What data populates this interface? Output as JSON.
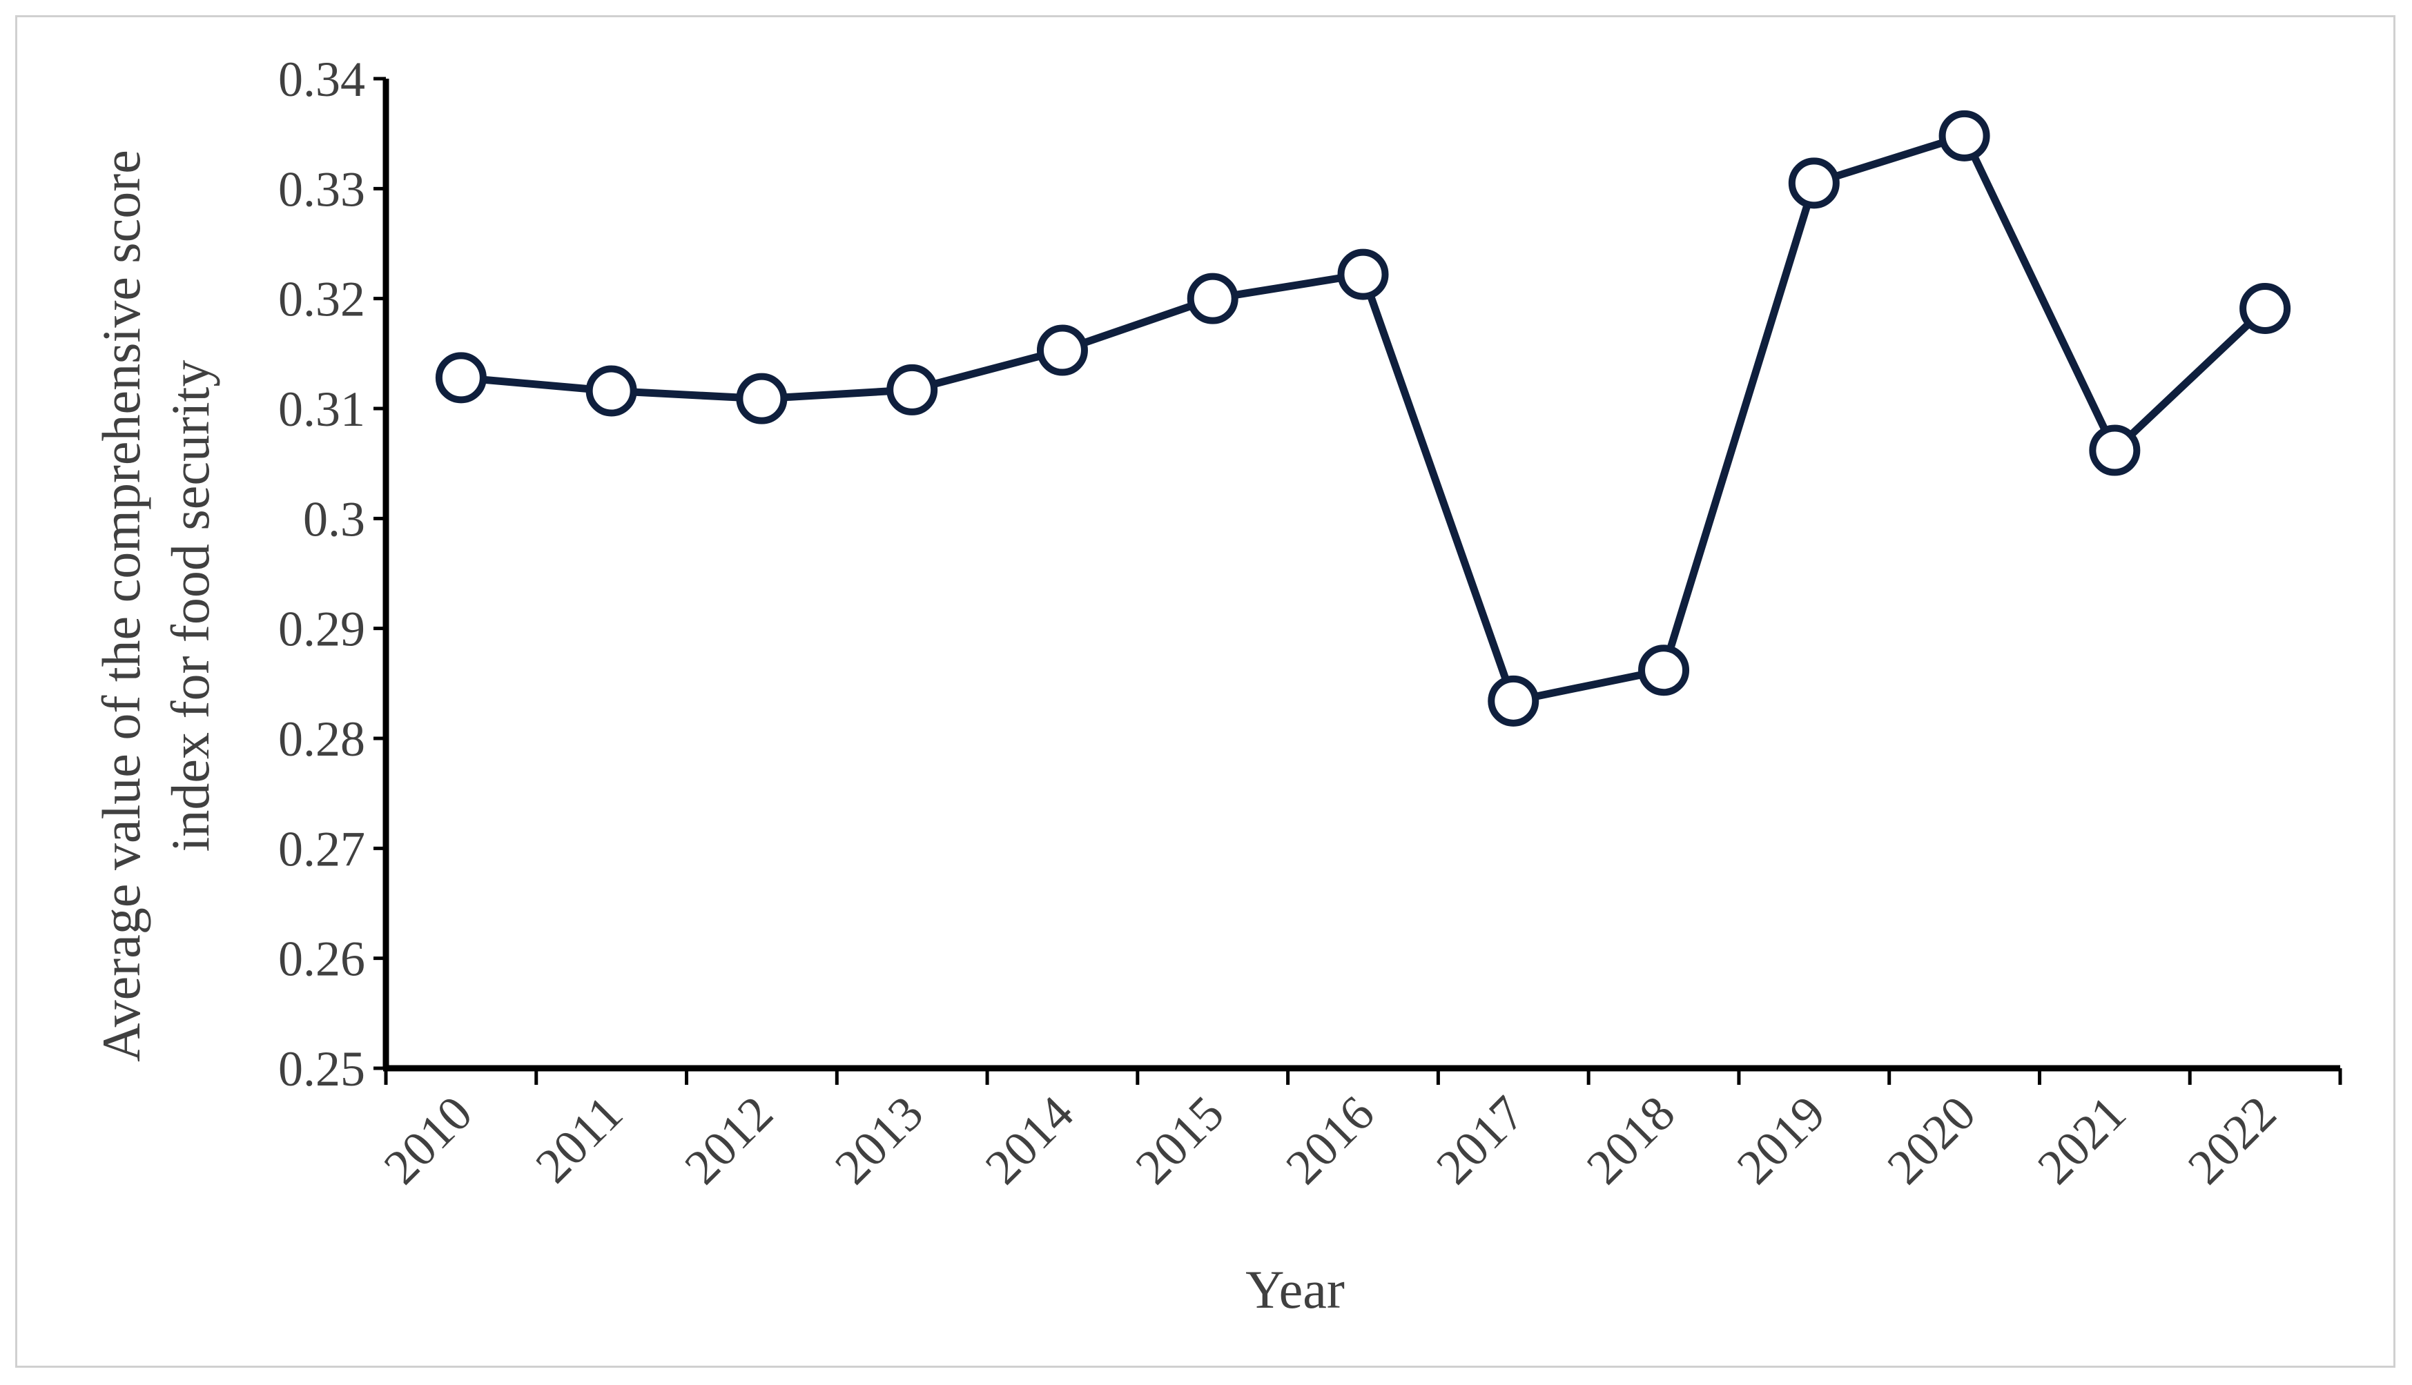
{
  "chart_data": {
    "type": "line",
    "title": "",
    "xlabel": "Year",
    "ylabel_lines": [
      "Average value of the comprehensive score",
      "index for food security"
    ],
    "categories": [
      "2010",
      "2011",
      "2012",
      "2013",
      "2014",
      "2015",
      "2016",
      "2017",
      "2018",
      "2019",
      "2020",
      "2021",
      "2022"
    ],
    "series": [
      {
        "values": [
          0.3128,
          0.3116,
          0.3109,
          0.3117,
          0.3153,
          0.32,
          0.3222,
          0.2834,
          0.2862,
          0.3305,
          0.3348,
          0.3062,
          0.3191
        ]
      }
    ],
    "ylim": [
      0.25,
      0.34
    ],
    "yticks": [
      0.25,
      0.26,
      0.27,
      0.28,
      0.29,
      0.3,
      0.31,
      0.32,
      0.33,
      0.34
    ],
    "ytick_labels": [
      "0.25",
      "0.26",
      "0.27",
      "0.28",
      "0.29",
      "0.3",
      "0.31",
      "0.32",
      "0.33",
      "0.34"
    ],
    "grid": false,
    "colors": {
      "line": "#0f1f3d",
      "marker_fill": "#ffffff",
      "axis": "#000000"
    }
  }
}
